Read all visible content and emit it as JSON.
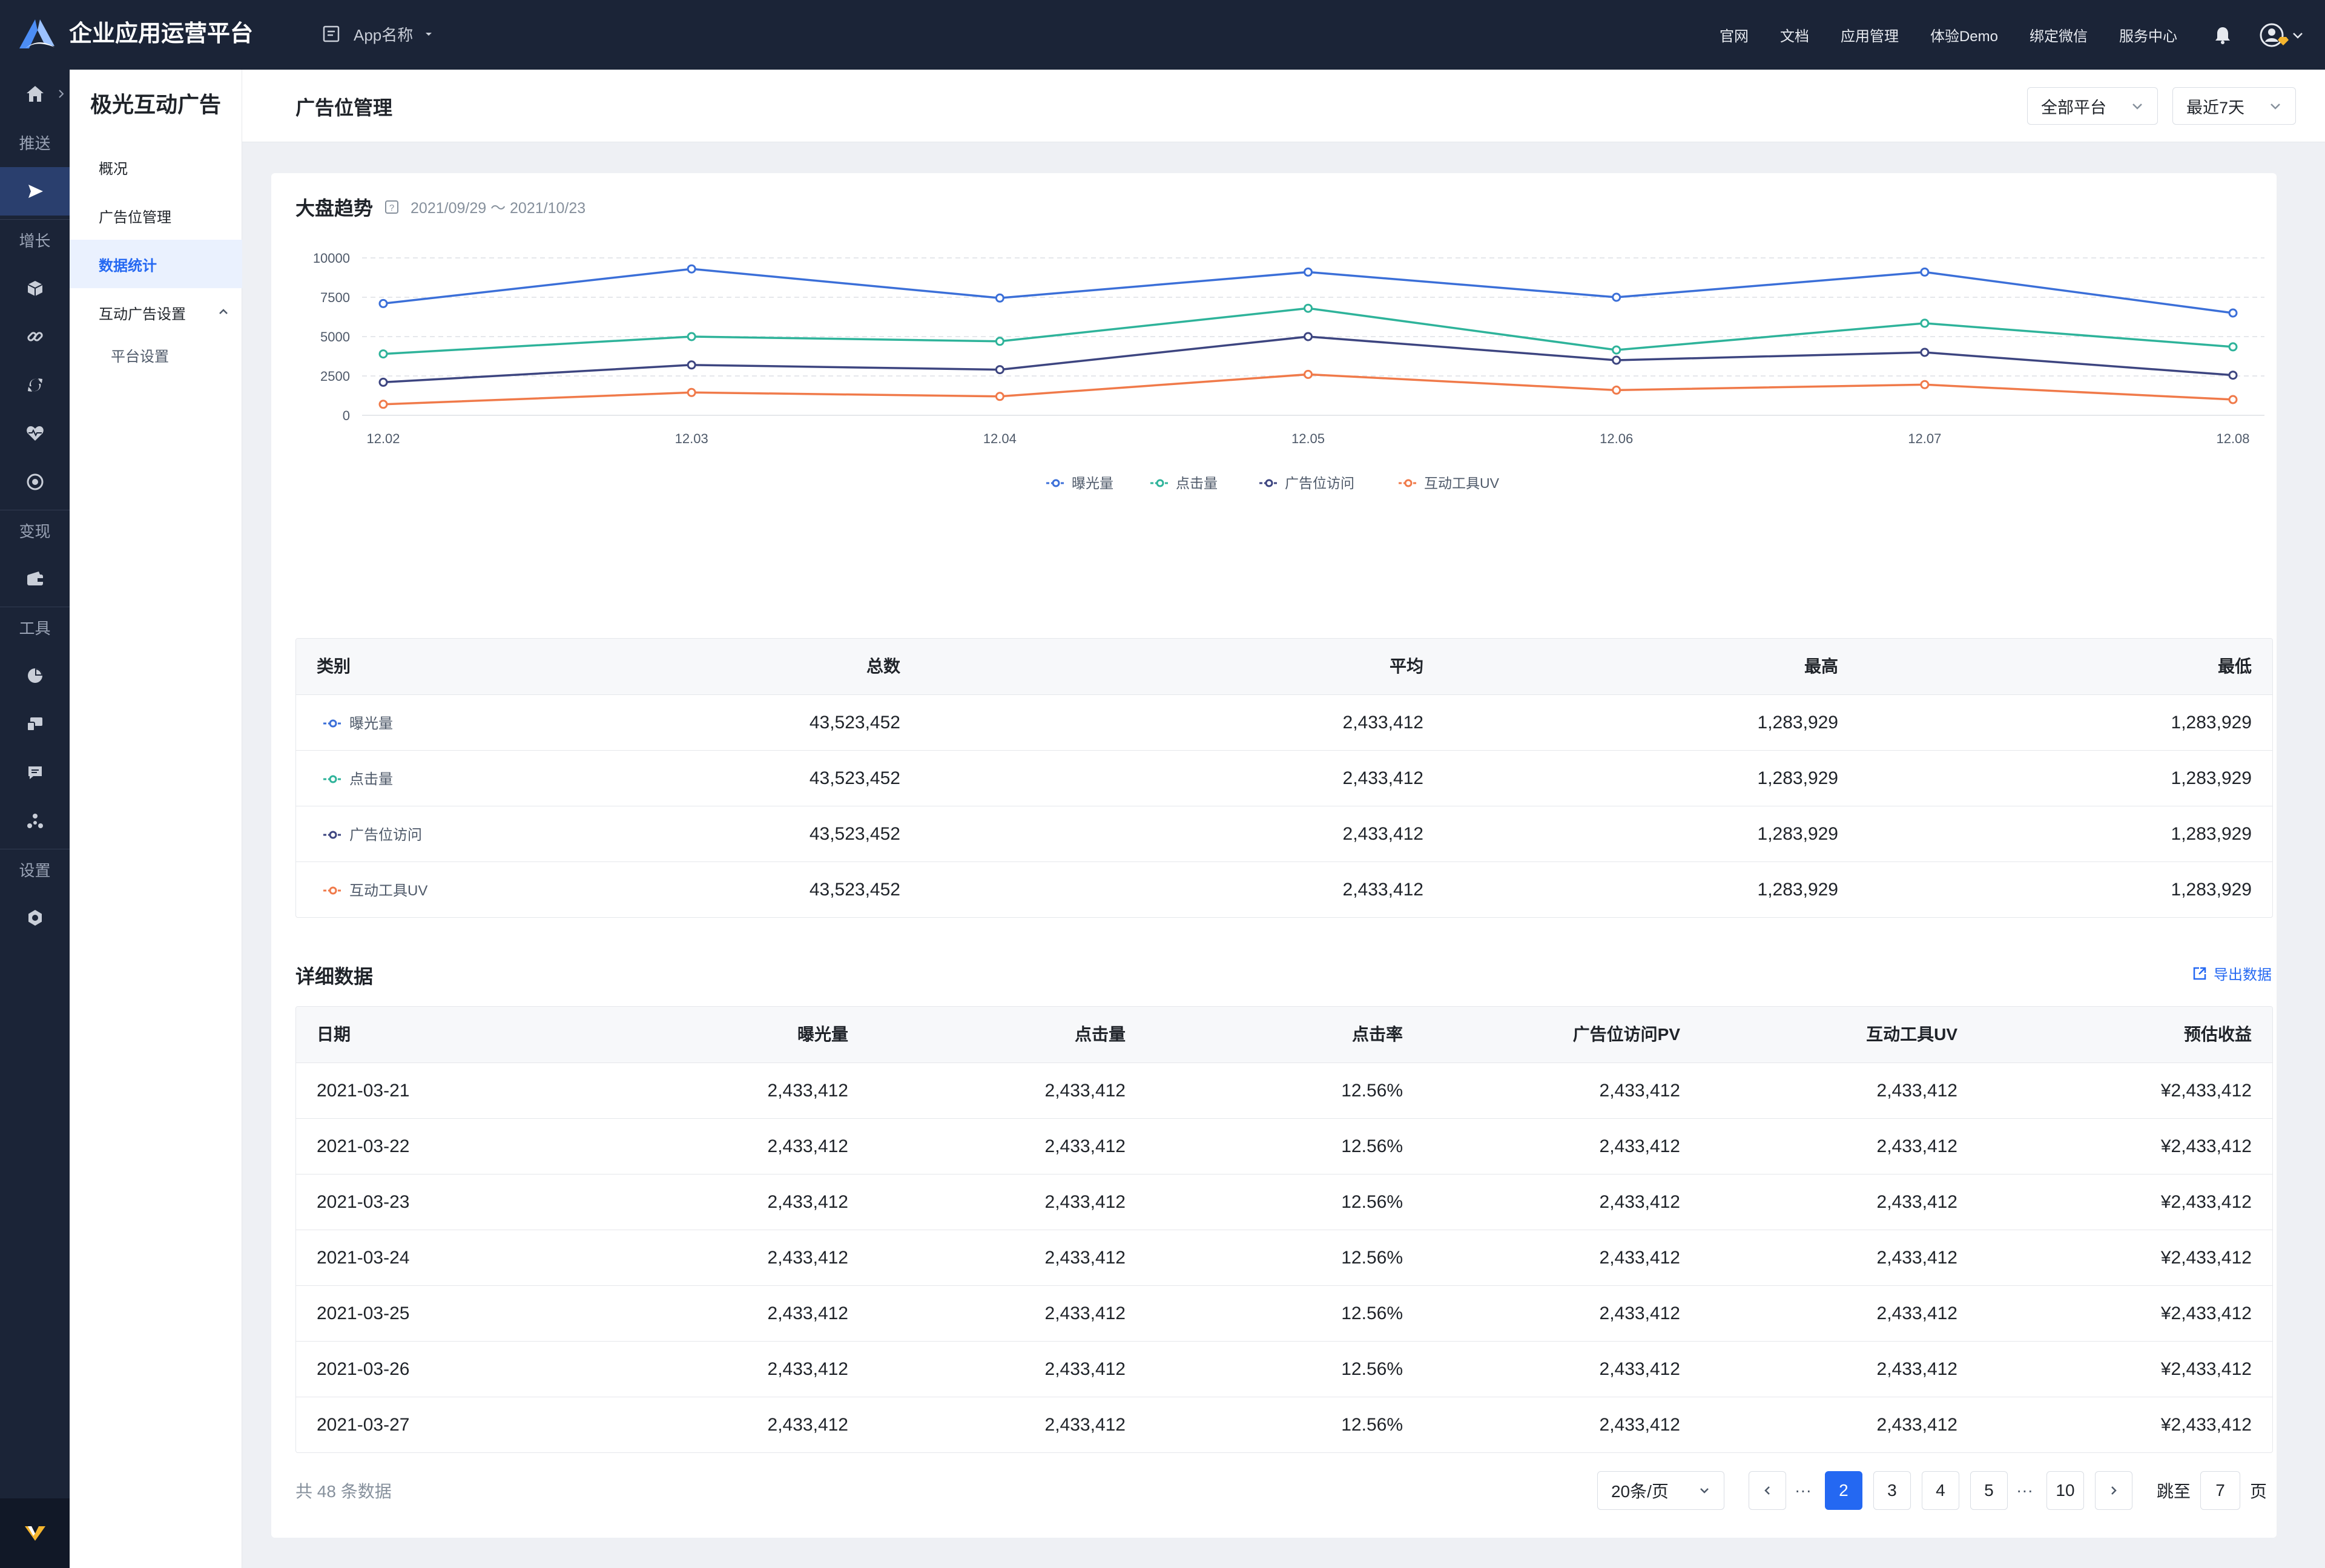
{
  "topbar": {
    "app_title": "企业应用运营平台",
    "app_select": "App名称",
    "nav": [
      "官网",
      "文档",
      "应用管理",
      "体验Demo",
      "绑定微信",
      "服务中心"
    ]
  },
  "rail": {
    "labels": [
      "推送",
      "增长",
      "变现",
      "工具",
      "设置"
    ]
  },
  "subnav": {
    "title": "极光互动广告",
    "items": [
      "概况",
      "广告位管理",
      "数据统计",
      "互动广告设置",
      "平台设置"
    ]
  },
  "header": {
    "title": "广告位管理",
    "platform_select": "全部平台",
    "range_select": "最近7天"
  },
  "trend": {
    "title": "大盘趋势",
    "date_range": "2021/09/29 ～ 2021/10/23"
  },
  "chart_data": {
    "type": "line",
    "title": "大盘趋势",
    "x": [
      "12.02",
      "12.03",
      "12.04",
      "12.05",
      "12.06",
      "12.07",
      "12.08"
    ],
    "y_ticks": [
      "0",
      "2500",
      "5000",
      "7500",
      "10000"
    ],
    "ylim": [
      0,
      10000
    ],
    "grid": true,
    "legend_position": "bottom-center",
    "series": [
      {
        "name": "曝光量",
        "color": "#3b6fd8",
        "values": [
          7100,
          9300,
          7450,
          9100,
          7500,
          9100,
          6500
        ]
      },
      {
        "name": "点击量",
        "color": "#2eb39a",
        "values": [
          3900,
          5000,
          4700,
          6800,
          4150,
          5850,
          4350
        ]
      },
      {
        "name": "广告位访问",
        "color": "#3d4580",
        "values": [
          2100,
          3200,
          2900,
          5000,
          3500,
          4000,
          2550
        ]
      },
      {
        "name": "互动工具UV",
        "color": "#f07a4a",
        "values": [
          700,
          1450,
          1200,
          2600,
          1600,
          1950,
          1000
        ]
      }
    ]
  },
  "summary": {
    "headers": [
      "类别",
      "总数",
      "平均",
      "最高",
      "最低"
    ],
    "rows": [
      {
        "name": "曝光量",
        "color": "#3b6fd8",
        "total": "43,523,452",
        "avg": "2,433,412",
        "max": "1,283,929",
        "min": "1,283,929"
      },
      {
        "name": "点击量",
        "color": "#2eb39a",
        "total": "43,523,452",
        "avg": "2,433,412",
        "max": "1,283,929",
        "min": "1,283,929"
      },
      {
        "name": "广告位访问",
        "color": "#3d4580",
        "total": "43,523,452",
        "avg": "2,433,412",
        "max": "1,283,929",
        "min": "1,283,929"
      },
      {
        "name": "互动工具UV",
        "color": "#f07a4a",
        "total": "43,523,452",
        "avg": "2,433,412",
        "max": "1,283,929",
        "min": "1,283,929"
      }
    ]
  },
  "detail": {
    "title": "详细数据",
    "export_label": "导出数据",
    "headers": [
      "日期",
      "曝光量",
      "点击量",
      "点击率",
      "广告位访问PV",
      "互动工具UV",
      "预估收益"
    ],
    "rows": [
      [
        "2021-03-21",
        "2,433,412",
        "2,433,412",
        "12.56%",
        "2,433,412",
        "2,433,412",
        "¥2,433,412"
      ],
      [
        "2021-03-22",
        "2,433,412",
        "2,433,412",
        "12.56%",
        "2,433,412",
        "2,433,412",
        "¥2,433,412"
      ],
      [
        "2021-03-23",
        "2,433,412",
        "2,433,412",
        "12.56%",
        "2,433,412",
        "2,433,412",
        "¥2,433,412"
      ],
      [
        "2021-03-24",
        "2,433,412",
        "2,433,412",
        "12.56%",
        "2,433,412",
        "2,433,412",
        "¥2,433,412"
      ],
      [
        "2021-03-25",
        "2,433,412",
        "2,433,412",
        "12.56%",
        "2,433,412",
        "2,433,412",
        "¥2,433,412"
      ],
      [
        "2021-03-26",
        "2,433,412",
        "2,433,412",
        "12.56%",
        "2,433,412",
        "2,433,412",
        "¥2,433,412"
      ],
      [
        "2021-03-27",
        "2,433,412",
        "2,433,412",
        "12.56%",
        "2,433,412",
        "2,433,412",
        "¥2,433,412"
      ]
    ]
  },
  "pagination": {
    "total_text": "共 48 条数据",
    "page_size": "20条/页",
    "ellipsis": "···",
    "pages": [
      "2",
      "3",
      "4",
      "5",
      "10"
    ],
    "current": "2",
    "jump_label": "跳至",
    "jump_value": "7",
    "page_suffix": "页"
  },
  "colors": {
    "accent": "#2468f2",
    "topbar": "#1b2437",
    "rail_active": "#2a3f6e"
  },
  "icons": {
    "rail": [
      "home-icon",
      "send-icon",
      "cube-icon",
      "link-icon",
      "refresh-icon",
      "heart-pulse-icon",
      "target-icon",
      "wallet-icon",
      "pie-chart-icon",
      "devices-icon",
      "chat-icon",
      "nodes-icon",
      "gear-icon"
    ],
    "topbar": [
      "logo-icon",
      "app-icon",
      "bell-icon",
      "avatar-icon"
    ]
  }
}
